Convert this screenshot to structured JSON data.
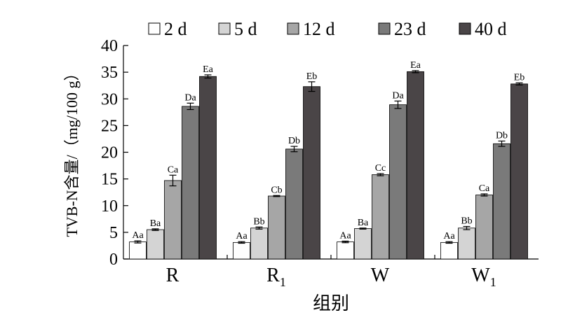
{
  "chart_data": {
    "type": "bar",
    "categories": [
      {
        "base": "R",
        "sub": ""
      },
      {
        "base": "R",
        "sub": "1"
      },
      {
        "base": "W",
        "sub": ""
      },
      {
        "base": "W",
        "sub": "1"
      }
    ],
    "series": [
      {
        "name": "2 d",
        "color": "#ffffff",
        "values": [
          3.2,
          3.1,
          3.2,
          3.1
        ],
        "errors": [
          0.2,
          0.15,
          0.15,
          0.15
        ],
        "labels": [
          "Aa",
          "Aa",
          "Aa",
          "Aa"
        ]
      },
      {
        "name": "5 d",
        "color": "#d4d4d4",
        "values": [
          5.5,
          5.8,
          5.7,
          5.8
        ],
        "errors": [
          0.15,
          0.2,
          0.1,
          0.3
        ],
        "labels": [
          "Ba",
          "Bb",
          "Ba",
          "Bb"
        ]
      },
      {
        "name": "12 d",
        "color": "#a6a6a6",
        "values": [
          14.7,
          11.8,
          15.8,
          12.0
        ],
        "errors": [
          1.0,
          0.1,
          0.2,
          0.2
        ],
        "labels": [
          "Ca",
          "Cb",
          "Cc",
          "Ca"
        ]
      },
      {
        "name": "23 d",
        "color": "#7a7a7a",
        "values": [
          28.6,
          20.6,
          28.9,
          21.6
        ],
        "errors": [
          0.6,
          0.5,
          0.7,
          0.5
        ],
        "labels": [
          "Da",
          "Db",
          "Da",
          "Db"
        ]
      },
      {
        "name": "40 d",
        "color": "#4a4547",
        "values": [
          34.2,
          32.3,
          35.1,
          32.8
        ],
        "errors": [
          0.3,
          0.9,
          0.2,
          0.2
        ],
        "labels": [
          "Ea",
          "Eb",
          "Ea",
          "Eb"
        ]
      }
    ],
    "ylabel": "TVB-N含量/（mg/100 g）",
    "xlabel": "组别",
    "ylim": [
      0,
      40
    ],
    "yticks": [
      0,
      5,
      10,
      15,
      20,
      25,
      30,
      35,
      40
    ],
    "grid": false,
    "legend_position": "top"
  }
}
